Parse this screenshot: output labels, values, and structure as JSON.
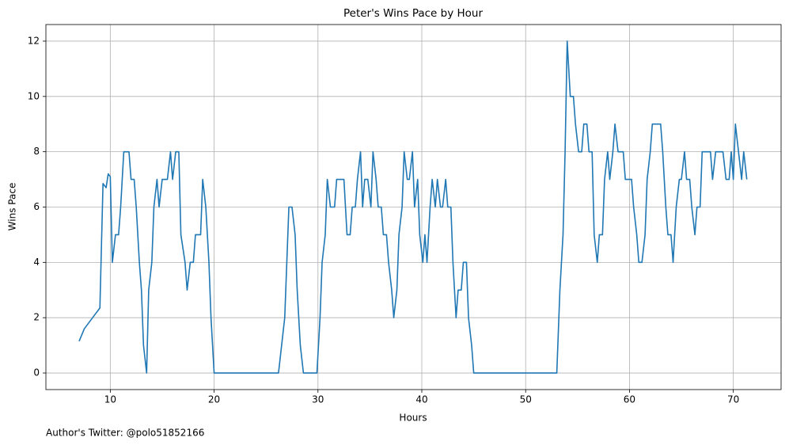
{
  "chart_data": {
    "type": "line",
    "title": "Peter's Wins Pace by Hour",
    "xlabel": "Hours",
    "ylabel": "Wins Pace",
    "footnote": "Author's Twitter: @polo51852166",
    "color": "#1f77b4",
    "grid": true,
    "xlim": [
      3.8,
      74.6
    ],
    "ylim": [
      -0.6,
      12.6
    ],
    "xticks": [
      10,
      20,
      30,
      40,
      50,
      60,
      70
    ],
    "yticks": [
      0,
      2,
      4,
      6,
      8,
      10,
      12
    ],
    "x": [
      7.0,
      7.5,
      8.0,
      8.5,
      9.0,
      9.3,
      9.6,
      9.8,
      10.0,
      10.2,
      10.5,
      10.8,
      11.0,
      11.3,
      11.8,
      12.0,
      12.3,
      12.5,
      12.8,
      13.0,
      13.2,
      13.5,
      13.7,
      14.0,
      14.2,
      14.5,
      14.7,
      15.0,
      15.5,
      15.8,
      16.0,
      16.3,
      16.6,
      16.8,
      17.2,
      17.4,
      17.7,
      18.0,
      18.2,
      18.7,
      18.9,
      19.2,
      19.5,
      19.7,
      20.0,
      26.2,
      26.5,
      26.8,
      27.0,
      27.2,
      27.5,
      27.8,
      28.0,
      28.3,
      28.6,
      29.9,
      30.2,
      30.4,
      30.7,
      30.9,
      31.2,
      31.6,
      31.8,
      32.5,
      32.8,
      33.1,
      33.3,
      33.6,
      33.8,
      34.1,
      34.3,
      34.5,
      34.8,
      35.1,
      35.3,
      35.6,
      35.8,
      36.1,
      36.3,
      36.6,
      36.8,
      37.1,
      37.3,
      37.6,
      37.8,
      38.1,
      38.3,
      38.6,
      38.8,
      39.1,
      39.3,
      39.6,
      39.8,
      40.1,
      40.3,
      40.5,
      40.8,
      41.0,
      41.3,
      41.5,
      41.8,
      42.0,
      42.3,
      42.5,
      42.8,
      43.0,
      43.3,
      43.5,
      43.8,
      44.0,
      44.3,
      44.5,
      44.8,
      45.0,
      53.0,
      53.3,
      53.6,
      53.8,
      54.0,
      54.3,
      54.6,
      54.8,
      55.1,
      55.4,
      55.6,
      55.9,
      56.1,
      56.4,
      56.6,
      56.9,
      57.1,
      57.4,
      57.6,
      57.9,
      58.1,
      58.4,
      58.6,
      58.9,
      59.1,
      59.4,
      59.6,
      60.2,
      60.4,
      60.7,
      60.9,
      61.2,
      61.5,
      61.7,
      62.0,
      62.2,
      63.0,
      63.2,
      63.5,
      63.7,
      64.0,
      64.2,
      64.5,
      64.8,
      65.0,
      65.3,
      65.5,
      65.8,
      66.0,
      66.3,
      66.5,
      66.8,
      67.0,
      67.8,
      68.0,
      68.3,
      69.0,
      69.3,
      69.6,
      69.8,
      70.0,
      70.2,
      70.5,
      70.8,
      71.0,
      71.3
    ],
    "values": [
      1.15,
      1.6,
      1.85,
      2.1,
      2.35,
      6.85,
      6.7,
      7.2,
      7.1,
      4,
      5,
      5,
      6,
      8,
      8,
      7,
      7,
      6,
      4,
      3,
      1,
      0,
      3,
      4,
      6,
      7,
      6,
      7,
      7,
      8,
      7,
      8,
      8,
      5,
      4,
      3,
      4,
      4,
      5,
      5,
      7,
      6,
      4,
      2,
      0,
      0,
      1,
      2,
      4,
      6,
      6,
      5,
      3,
      1,
      0,
      0,
      2,
      4,
      5,
      7,
      6,
      6,
      7,
      7,
      5,
      5,
      6,
      6,
      7,
      8,
      6,
      7,
      7,
      6,
      8,
      7,
      6,
      6,
      5,
      5,
      4,
      3,
      2,
      3,
      5,
      6,
      8,
      7,
      7,
      8,
      6,
      7,
      5,
      4,
      5,
      4,
      6,
      7,
      6,
      7,
      6,
      6,
      7,
      6,
      6,
      4,
      2,
      3,
      3,
      4,
      4,
      2,
      1,
      0,
      0,
      3,
      5,
      8,
      12,
      10,
      10,
      9,
      8,
      8,
      9,
      9,
      8,
      8,
      5,
      4,
      5,
      5,
      7,
      8,
      7,
      8,
      9,
      8,
      8,
      8,
      7,
      7,
      6,
      5,
      4,
      4,
      5,
      7,
      8,
      9,
      9,
      8,
      6,
      5,
      5,
      4,
      6,
      7,
      7,
      8,
      7,
      7,
      6,
      5,
      6,
      6,
      8,
      8,
      7,
      8,
      8,
      7,
      7,
      8,
      7,
      9,
      8,
      7,
      8,
      7
    ]
  }
}
